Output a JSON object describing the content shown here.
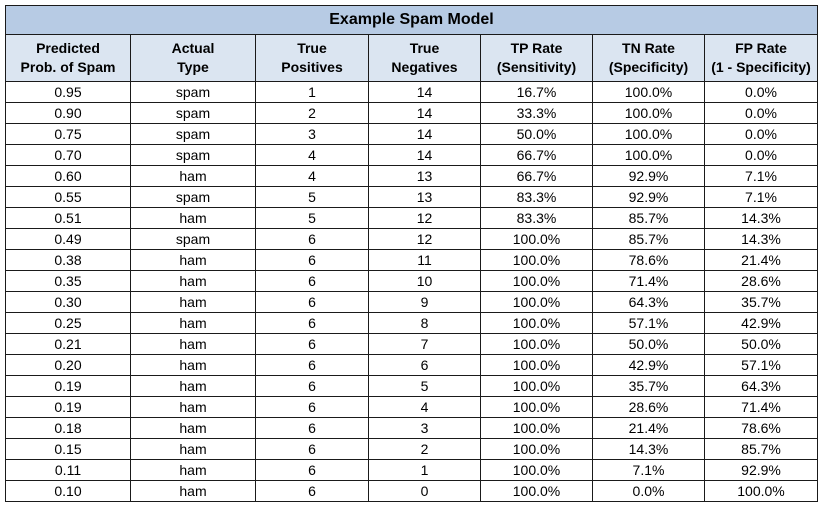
{
  "title": "Example Spam Model",
  "columns": [
    [
      "Predicted",
      "Prob. of Spam"
    ],
    [
      "Actual",
      "Type"
    ],
    [
      "True",
      "Positives"
    ],
    [
      "True",
      "Negatives"
    ],
    [
      "TP Rate",
      "(Sensitivity)"
    ],
    [
      "TN Rate",
      "(Specificity)"
    ],
    [
      "FP Rate",
      "(1 - Specificity)"
    ]
  ],
  "rows": [
    [
      "0.95",
      "spam",
      "1",
      "14",
      "16.7%",
      "100.0%",
      "0.0%"
    ],
    [
      "0.90",
      "spam",
      "2",
      "14",
      "33.3%",
      "100.0%",
      "0.0%"
    ],
    [
      "0.75",
      "spam",
      "3",
      "14",
      "50.0%",
      "100.0%",
      "0.0%"
    ],
    [
      "0.70",
      "spam",
      "4",
      "14",
      "66.7%",
      "100.0%",
      "0.0%"
    ],
    [
      "0.60",
      "ham",
      "4",
      "13",
      "66.7%",
      "92.9%",
      "7.1%"
    ],
    [
      "0.55",
      "spam",
      "5",
      "13",
      "83.3%",
      "92.9%",
      "7.1%"
    ],
    [
      "0.51",
      "ham",
      "5",
      "12",
      "83.3%",
      "85.7%",
      "14.3%"
    ],
    [
      "0.49",
      "spam",
      "6",
      "12",
      "100.0%",
      "85.7%",
      "14.3%"
    ],
    [
      "0.38",
      "ham",
      "6",
      "11",
      "100.0%",
      "78.6%",
      "21.4%"
    ],
    [
      "0.35",
      "ham",
      "6",
      "10",
      "100.0%",
      "71.4%",
      "28.6%"
    ],
    [
      "0.30",
      "ham",
      "6",
      "9",
      "100.0%",
      "64.3%",
      "35.7%"
    ],
    [
      "0.25",
      "ham",
      "6",
      "8",
      "100.0%",
      "57.1%",
      "42.9%"
    ],
    [
      "0.21",
      "ham",
      "6",
      "7",
      "100.0%",
      "50.0%",
      "50.0%"
    ],
    [
      "0.20",
      "ham",
      "6",
      "6",
      "100.0%",
      "42.9%",
      "57.1%"
    ],
    [
      "0.19",
      "ham",
      "6",
      "5",
      "100.0%",
      "35.7%",
      "64.3%"
    ],
    [
      "0.19",
      "ham",
      "6",
      "4",
      "100.0%",
      "28.6%",
      "71.4%"
    ],
    [
      "0.18",
      "ham",
      "6",
      "3",
      "100.0%",
      "21.4%",
      "78.6%"
    ],
    [
      "0.15",
      "ham",
      "6",
      "2",
      "100.0%",
      "14.3%",
      "85.7%"
    ],
    [
      "0.11",
      "ham",
      "6",
      "1",
      "100.0%",
      "7.1%",
      "92.9%"
    ],
    [
      "0.10",
      "ham",
      "6",
      "0",
      "100.0%",
      "0.0%",
      "100.0%"
    ]
  ],
  "colors": {
    "title_bg": "#b7cbe4",
    "header_bg": "#dbe5f1",
    "border": "#1a1a1a"
  }
}
